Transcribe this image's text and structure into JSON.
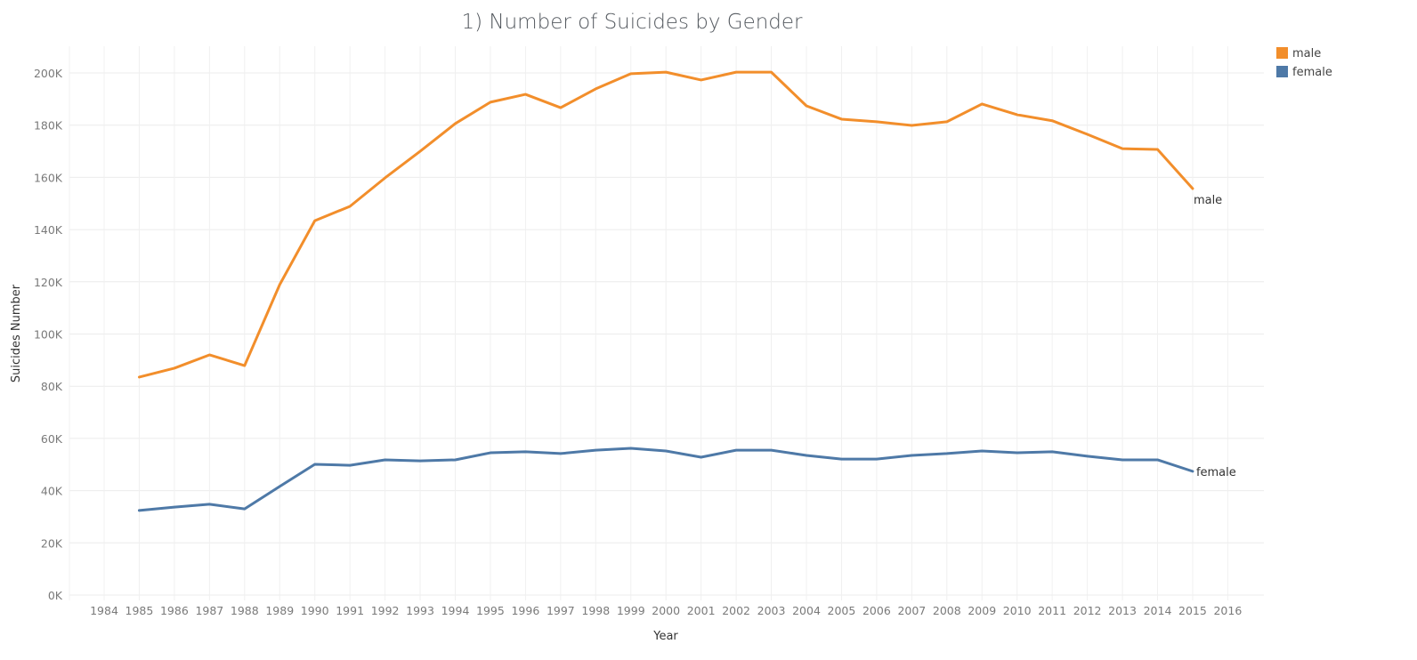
{
  "chart_data": {
    "type": "line",
    "title": "1) Number of Suicides by Gender",
    "xlabel": "Year",
    "ylabel": "Suicides Number",
    "x_ticks": [
      "1984",
      "1985",
      "1986",
      "1987",
      "1988",
      "1989",
      "1990",
      "1991",
      "1992",
      "1993",
      "1994",
      "1995",
      "1996",
      "1997",
      "1998",
      "1999",
      "2000",
      "2001",
      "2002",
      "2003",
      "2004",
      "2005",
      "2006",
      "2007",
      "2008",
      "2009",
      "2010",
      "2011",
      "2012",
      "2013",
      "2014",
      "2015",
      "2016"
    ],
    "xlim": [
      1984,
      2016
    ],
    "ylim": [
      0,
      200000
    ],
    "y_ticks": [
      0,
      20000,
      40000,
      60000,
      80000,
      100000,
      120000,
      140000,
      160000,
      180000,
      200000
    ],
    "y_tick_labels": [
      "0K",
      "20K",
      "40K",
      "60K",
      "80K",
      "100K",
      "120K",
      "140K",
      "160K",
      "180K",
      "200K"
    ],
    "grid": true,
    "legend_position": "top-right",
    "x": [
      1985,
      1986,
      1987,
      1988,
      1989,
      1990,
      1991,
      1992,
      1993,
      1994,
      1995,
      1996,
      1997,
      1998,
      1999,
      2000,
      2001,
      2002,
      2003,
      2004,
      2005,
      2006,
      2007,
      2008,
      2009,
      2010,
      2011,
      2012,
      2013,
      2014,
      2015
    ],
    "series": [
      {
        "name": "male",
        "color": "#f28e2b",
        "end_label": "male",
        "values": [
          83500,
          86900,
          92000,
          87900,
          118900,
          143400,
          148900,
          159800,
          170000,
          180600,
          188800,
          191800,
          186700,
          193900,
          199700,
          200300,
          197300,
          200300,
          200300,
          187400,
          182300,
          181300,
          179900,
          181300,
          188100,
          184000,
          181700,
          176500,
          171000,
          170700,
          155700
        ]
      },
      {
        "name": "female",
        "color": "#4e79a7",
        "end_label": "female",
        "values": [
          32400,
          33700,
          34800,
          33000,
          41600,
          50100,
          49700,
          51800,
          51400,
          51800,
          54500,
          54900,
          54200,
          55500,
          56200,
          55200,
          52800,
          55500,
          55500,
          53500,
          52100,
          52100,
          53500,
          54200,
          55200,
          54500,
          54900,
          53200,
          51800,
          51800,
          47400
        ]
      }
    ]
  }
}
